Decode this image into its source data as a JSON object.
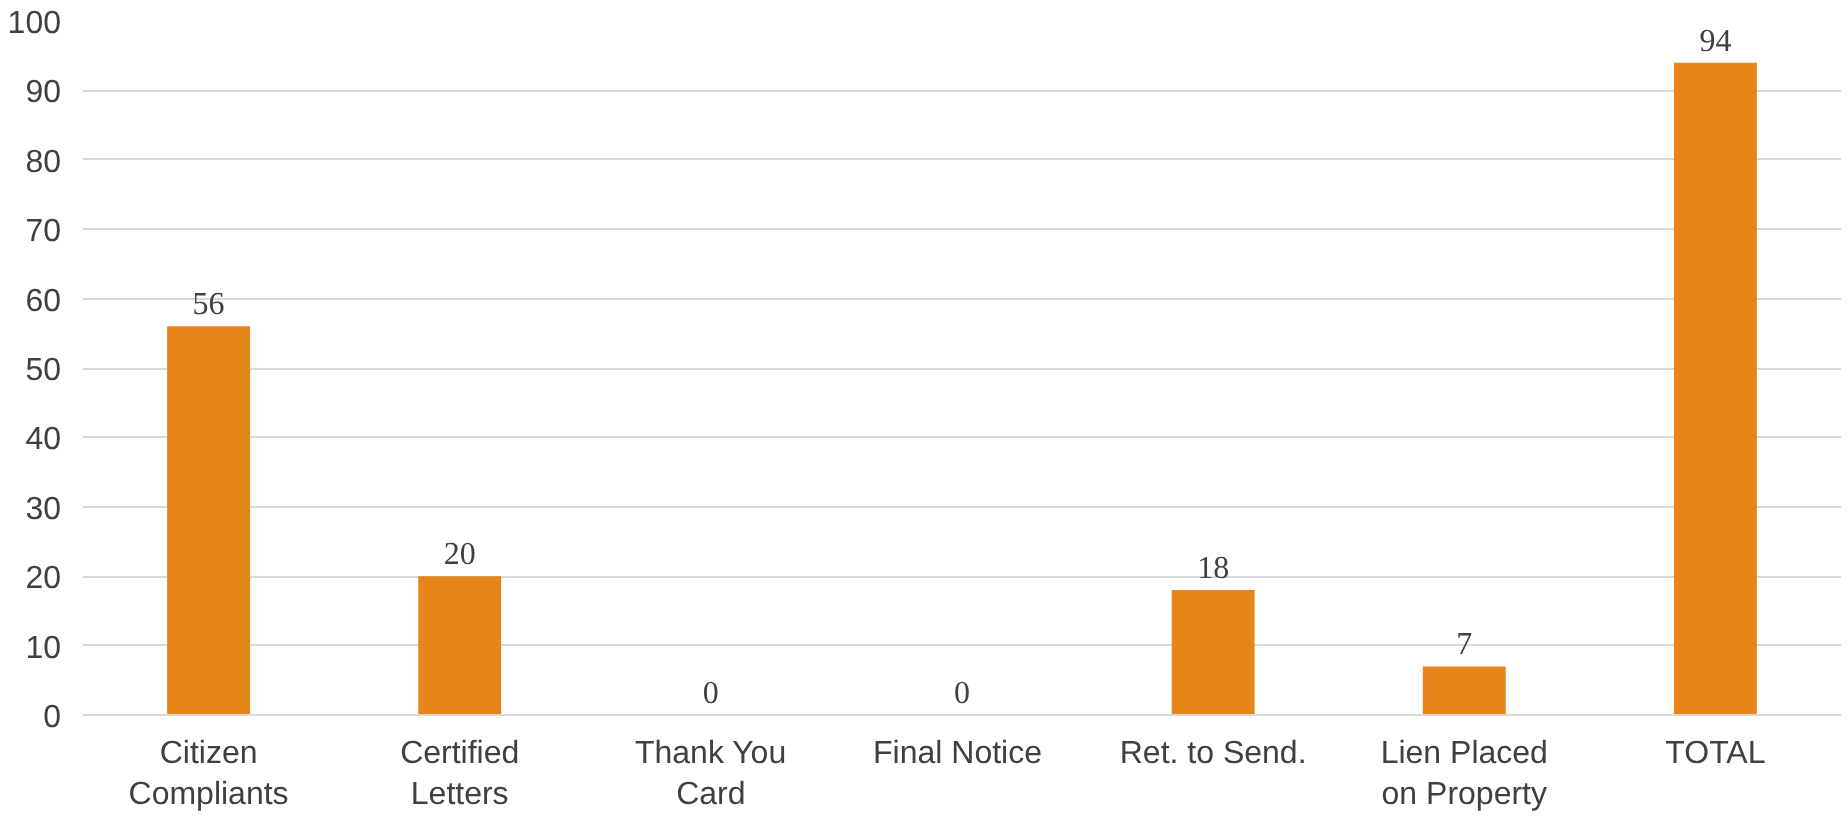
{
  "chart_data": {
    "type": "bar",
    "categories": [
      "Citizen Compliants",
      "Certified Letters",
      "Thank You Card",
      "Final  Notice",
      "Ret. to Send.",
      "Lien Placed on Property",
      "TOTAL"
    ],
    "values": [
      56,
      20,
      0,
      0,
      18,
      7,
      94
    ],
    "color": "#e6861a",
    "ylim": [
      0,
      100
    ],
    "yticks": [
      0,
      10,
      20,
      30,
      40,
      50,
      60,
      70,
      80,
      90,
      100
    ],
    "grid": "y",
    "data_labels": true
  }
}
